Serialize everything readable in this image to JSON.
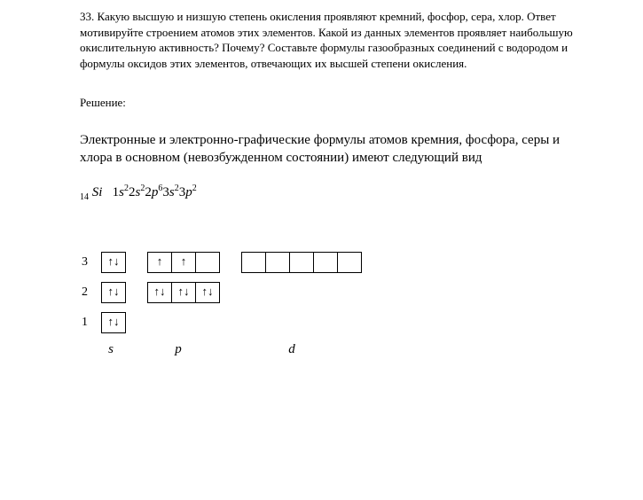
{
  "problem": {
    "number": "33.",
    "text": "Какую высшую и низшую степень окисления проявляют кремний, фосфор, сера, хлор. Ответ мотивируйте строением атомов этих элементов. Какой из данных элементов проявляет наибольшую окислительную активность? Почему? Составьте формулы газообразных соединений с водородом и формулы оксидов этих элементов, отвечающих их высшей степени окисления."
  },
  "solution_label": "Решение:",
  "intro": "Электронные и электронно-графические формулы атомов кремния, фосфора, серы и хлора в основном (невозбужденном состоянии) имеют следующий вид",
  "formula": {
    "prefix_sub": "14",
    "element": "Si",
    "orbitals": [
      {
        "shell": "1",
        "sub": "s",
        "sup": "2"
      },
      {
        "shell": "2",
        "sub": "s",
        "sup": "2"
      },
      {
        "shell": "2",
        "sub": "p",
        "sup": "6"
      },
      {
        "shell": "3",
        "sub": "s",
        "sup": "2"
      },
      {
        "shell": "3",
        "sub": "p",
        "sup": "2"
      }
    ]
  },
  "arrows": {
    "updown": "↑↓",
    "up": "↑",
    "empty": ""
  },
  "diagram": {
    "levels": [
      {
        "n": "3",
        "blocks": [
          {
            "cells": [
              "updown"
            ]
          },
          {
            "cells": [
              "up",
              "up",
              "empty"
            ]
          },
          {
            "cells": [
              "empty",
              "empty",
              "empty",
              "empty",
              "empty"
            ]
          }
        ]
      },
      {
        "n": "2",
        "blocks": [
          {
            "cells": [
              "updown"
            ]
          },
          {
            "cells": [
              "updown",
              "updown",
              "updown"
            ]
          }
        ]
      },
      {
        "n": "1",
        "blocks": [
          {
            "cells": [
              "updown"
            ]
          }
        ]
      }
    ],
    "labels": {
      "s": "s",
      "p": "p",
      "d": "d"
    }
  }
}
